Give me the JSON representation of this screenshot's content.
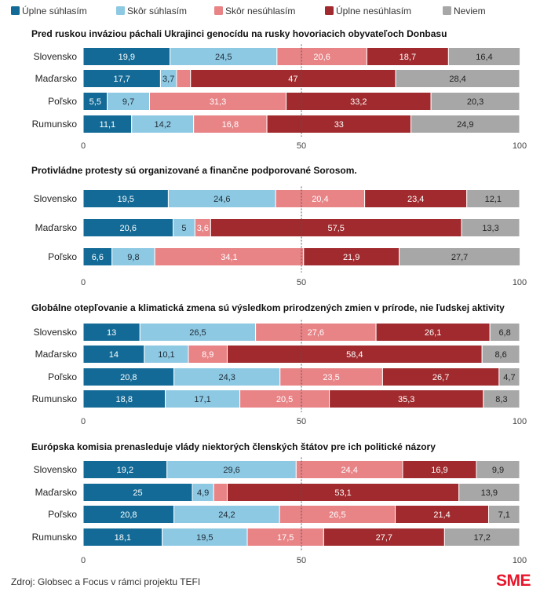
{
  "colors": {
    "uplne_suhlasim": "#136a96",
    "skor_suhlasim": "#8ec9e3",
    "skor_nesuhlasim": "#e88386",
    "uplne_nesuhlasim": "#a02a2d",
    "neviem": "#a7a7a7",
    "brand": "#e8162b"
  },
  "legend": [
    {
      "label": "Úplne súhlasím",
      "color": "#136a96"
    },
    {
      "label": "Skôr súhlasím",
      "color": "#8ec9e3"
    },
    {
      "label": "Skôr nesúhlasím",
      "color": "#e88386"
    },
    {
      "label": "Úplne nesúhlasím",
      "color": "#a02a2d"
    },
    {
      "label": "Neviem",
      "color": "#a7a7a7"
    }
  ],
  "source": "Zdroj: Globsec a Focus v rámci projektu TEFI",
  "brand_logo": "SME",
  "chart_data": [
    {
      "type": "bar",
      "orientation": "horizontal",
      "stacked": true,
      "title": "Pred ruskou inváziou páchali Ukrajinci genocídu na rusky hovoriacich obyvateľoch Donbasu",
      "categories": [
        "Slovensko",
        "Maďarsko",
        "Poľsko",
        "Rumunsko"
      ],
      "series": [
        {
          "name": "Úplne súhlasím",
          "values": [
            19.9,
            17.7,
            5.5,
            11.1
          ]
        },
        {
          "name": "Skôr súhlasím",
          "values": [
            24.5,
            3.7,
            9.7,
            14.2
          ]
        },
        {
          "name": "Skôr nesúhlasím",
          "values": [
            20.6,
            3.2,
            31.3,
            16.8
          ]
        },
        {
          "name": "Úplne nesúhlasím",
          "values": [
            18.7,
            47,
            33.2,
            33
          ]
        },
        {
          "name": "Neviem",
          "values": [
            16.4,
            28.4,
            20.3,
            24.9
          ]
        }
      ],
      "hidden_labels": [
        [],
        [
          2
        ],
        [],
        []
      ],
      "xlim": [
        0,
        100
      ],
      "xticks": [
        0,
        50,
        100
      ]
    },
    {
      "type": "bar",
      "orientation": "horizontal",
      "stacked": true,
      "title": "Protivládne protesty sú organizované a finančne podporované Sorosom.",
      "categories": [
        "Slovensko",
        "Maďarsko",
        "Poľsko"
      ],
      "series": [
        {
          "name": "Úplne súhlasím",
          "values": [
            19.5,
            20.6,
            6.6
          ]
        },
        {
          "name": "Skôr súhlasím",
          "values": [
            24.6,
            5,
            9.8
          ]
        },
        {
          "name": "Skôr nesúhlasím",
          "values": [
            20.4,
            3.6,
            34.1
          ]
        },
        {
          "name": "Úplne nesúhlasím",
          "values": [
            23.4,
            57.5,
            21.9
          ]
        },
        {
          "name": "Neviem",
          "values": [
            12.1,
            13.3,
            27.7
          ]
        }
      ],
      "hidden_labels": [
        [],
        [],
        []
      ],
      "xlim": [
        0,
        100
      ],
      "xticks": [
        0,
        50,
        100
      ]
    },
    {
      "type": "bar",
      "orientation": "horizontal",
      "stacked": true,
      "title": "Globálne otepľovanie a klimatická zmena sú výsledkom prirodzených zmien v prírode, nie ľudskej aktivity",
      "categories": [
        "Slovensko",
        "Maďarsko",
        "Poľsko",
        "Rumunsko"
      ],
      "series": [
        {
          "name": "Úplne súhlasím",
          "values": [
            13,
            14,
            20.8,
            18.8
          ]
        },
        {
          "name": "Skôr súhlasím",
          "values": [
            26.5,
            10.1,
            24.3,
            17.1
          ]
        },
        {
          "name": "Skôr nesúhlasím",
          "values": [
            27.6,
            8.9,
            23.5,
            20.5
          ]
        },
        {
          "name": "Úplne nesúhlasím",
          "values": [
            26.1,
            58.4,
            26.7,
            35.3
          ]
        },
        {
          "name": "Neviem",
          "values": [
            6.8,
            8.6,
            4.7,
            8.3
          ]
        }
      ],
      "hidden_labels": [
        [],
        [],
        [],
        []
      ],
      "xlim": [
        0,
        100
      ],
      "xticks": [
        0,
        50,
        100
      ]
    },
    {
      "type": "bar",
      "orientation": "horizontal",
      "stacked": true,
      "title": "Európska komisia prenasleduje vlády niektorých členských štátov pre ich politické názory",
      "categories": [
        "Slovensko",
        "Maďarsko",
        "Poľsko",
        "Rumunsko"
      ],
      "series": [
        {
          "name": "Úplne súhlasím",
          "values": [
            19.2,
            25,
            20.8,
            18.1
          ]
        },
        {
          "name": "Skôr súhlasím",
          "values": [
            29.6,
            4.9,
            24.2,
            19.5
          ]
        },
        {
          "name": "Skôr nesúhlasím",
          "values": [
            24.4,
            3.1,
            26.5,
            17.5
          ]
        },
        {
          "name": "Úplne nesúhlasím",
          "values": [
            16.9,
            53.1,
            21.4,
            27.7
          ]
        },
        {
          "name": "Neviem",
          "values": [
            9.9,
            13.9,
            7.1,
            17.2
          ]
        }
      ],
      "hidden_labels": [
        [],
        [
          2
        ],
        [],
        []
      ],
      "xlim": [
        0,
        100
      ],
      "xticks": [
        0,
        50,
        100
      ]
    }
  ]
}
